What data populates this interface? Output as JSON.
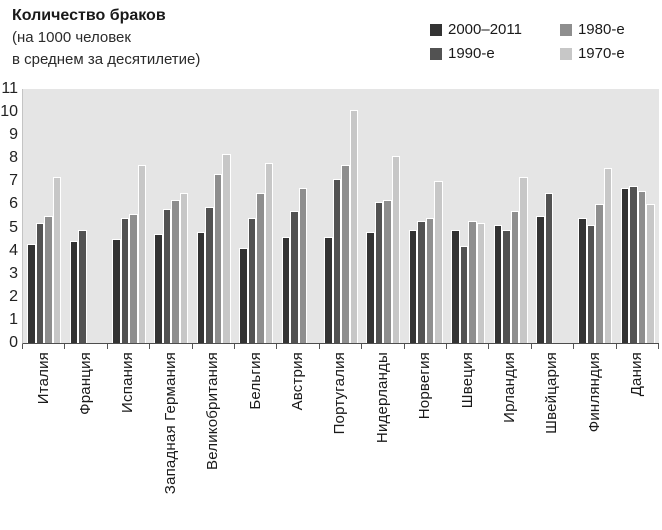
{
  "title": {
    "line1": "Количество браков",
    "line2": "(на 1000 человек",
    "line3": "в среднем за десятилетие)"
  },
  "legend": [
    {
      "label": "2000–2011",
      "color": "#333333"
    },
    {
      "label": "1990-е",
      "color": "#525252"
    },
    {
      "label": "1980-е",
      "color": "#8e8e8e"
    },
    {
      "label": "1970-е",
      "color": "#c7c7c7"
    }
  ],
  "chart_data": {
    "type": "bar",
    "title": "Количество браков (на 1000 человек в среднем за десятилетие)",
    "xlabel": "",
    "ylabel": "",
    "ylim": [
      0,
      11
    ],
    "yticks": [
      0,
      1,
      2,
      3,
      4,
      5,
      6,
      7,
      8,
      9,
      10,
      11
    ],
    "grid": false,
    "legend_position": "top-right",
    "plot_background": "#e5e5e5",
    "categories": [
      "Италия",
      "Франция",
      "Испания",
      "Западная Германия",
      "Великобритания",
      "Бельгия",
      "Австрия",
      "Португалия",
      "Нидерланды",
      "Норвегия",
      "Швеция",
      "Ирландия",
      "Швейцария",
      "Финляндия",
      "Дания"
    ],
    "series": [
      {
        "name": "2000–2011",
        "color": "#333333",
        "values": [
          4.3,
          4.4,
          4.5,
          4.7,
          4.8,
          4.1,
          4.6,
          4.6,
          4.8,
          4.9,
          4.9,
          5.1,
          5.5,
          5.4,
          6.7
        ]
      },
      {
        "name": "1990-е",
        "color": "#525252",
        "values": [
          5.2,
          4.9,
          5.4,
          5.8,
          5.9,
          5.4,
          5.7,
          7.1,
          6.1,
          5.3,
          4.2,
          4.9,
          6.5,
          5.1,
          6.8
        ]
      },
      {
        "name": "1980-е",
        "color": "#8e8e8e",
        "values": [
          5.5,
          null,
          5.6,
          6.2,
          7.3,
          6.5,
          6.7,
          7.7,
          6.2,
          5.4,
          5.3,
          5.7,
          null,
          6.0,
          6.6
        ]
      },
      {
        "name": "1970-е",
        "color": "#c7c7c7",
        "values": [
          7.2,
          null,
          7.7,
          6.5,
          8.2,
          7.8,
          null,
          10.1,
          8.1,
          7.0,
          5.2,
          7.2,
          null,
          7.6,
          6.0
        ]
      }
    ]
  }
}
